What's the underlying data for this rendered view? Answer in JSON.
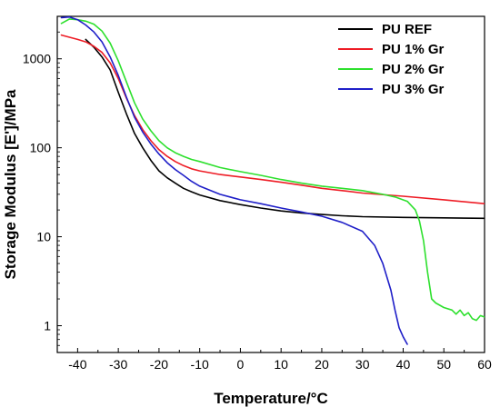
{
  "chart_data": {
    "type": "line",
    "xlabel": "Temperature/°C",
    "ylabel": "Storage Modulus [E']/MPa",
    "xlim": [
      -45,
      60
    ],
    "ylim": [
      0.5,
      3000
    ],
    "yscale": "log",
    "grid": false,
    "legend_position": "top-right",
    "x_ticks": [
      -40,
      -30,
      -20,
      -10,
      0,
      10,
      20,
      30,
      40,
      50,
      60
    ],
    "x_tick_labels": [
      "-40",
      "-30",
      "-20",
      "-10",
      "0",
      "10",
      "20",
      "30",
      "40",
      "50",
      "60"
    ],
    "y_ticks": [
      1,
      10,
      100,
      1000
    ],
    "y_tick_labels": [
      "1",
      "10",
      "100",
      "1000"
    ],
    "series": [
      {
        "name": "PU REF",
        "color": "#000000",
        "points": [
          [
            -38,
            1650
          ],
          [
            -36,
            1350
          ],
          [
            -34,
            1050
          ],
          [
            -32,
            750
          ],
          [
            -30,
            420
          ],
          [
            -28,
            240
          ],
          [
            -26,
            145
          ],
          [
            -24,
            100
          ],
          [
            -22,
            72
          ],
          [
            -20,
            55
          ],
          [
            -18,
            46
          ],
          [
            -16,
            40
          ],
          [
            -14,
            35
          ],
          [
            -12,
            32
          ],
          [
            -10,
            29.5
          ],
          [
            -5,
            25.5
          ],
          [
            0,
            23
          ],
          [
            5,
            21
          ],
          [
            10,
            19.5
          ],
          [
            15,
            18.5
          ],
          [
            20,
            17.8
          ],
          [
            25,
            17.2
          ],
          [
            30,
            16.8
          ],
          [
            40,
            16.5
          ],
          [
            50,
            16.3
          ],
          [
            60,
            16.1
          ]
        ]
      },
      {
        "name": "PU 1% Gr",
        "color": "#ee1c25",
        "points": [
          [
            -44,
            1850
          ],
          [
            -40,
            1650
          ],
          [
            -38,
            1550
          ],
          [
            -36,
            1380
          ],
          [
            -34,
            1180
          ],
          [
            -32,
            900
          ],
          [
            -30,
            600
          ],
          [
            -28,
            360
          ],
          [
            -26,
            230
          ],
          [
            -24,
            160
          ],
          [
            -22,
            120
          ],
          [
            -20,
            95
          ],
          [
            -18,
            80
          ],
          [
            -16,
            70
          ],
          [
            -14,
            63
          ],
          [
            -12,
            58
          ],
          [
            -10,
            55
          ],
          [
            -5,
            50
          ],
          [
            0,
            47
          ],
          [
            5,
            44
          ],
          [
            10,
            41
          ],
          [
            15,
            38
          ],
          [
            20,
            35
          ],
          [
            25,
            33
          ],
          [
            30,
            31
          ],
          [
            40,
            28.5
          ],
          [
            50,
            26
          ],
          [
            60,
            23.5
          ]
        ]
      },
      {
        "name": "PU 2% Gr",
        "color": "#2ee02e",
        "points": [
          [
            -44,
            2500
          ],
          [
            -42,
            2800
          ],
          [
            -40,
            2750
          ],
          [
            -38,
            2650
          ],
          [
            -36,
            2450
          ],
          [
            -34,
            2050
          ],
          [
            -32,
            1500
          ],
          [
            -30,
            950
          ],
          [
            -28,
            550
          ],
          [
            -26,
            320
          ],
          [
            -24,
            210
          ],
          [
            -22,
            155
          ],
          [
            -20,
            120
          ],
          [
            -18,
            100
          ],
          [
            -16,
            88
          ],
          [
            -14,
            80
          ],
          [
            -12,
            74
          ],
          [
            -10,
            70
          ],
          [
            -5,
            60
          ],
          [
            0,
            54
          ],
          [
            5,
            49
          ],
          [
            10,
            44
          ],
          [
            15,
            40
          ],
          [
            20,
            37
          ],
          [
            25,
            35
          ],
          [
            30,
            33
          ],
          [
            35,
            30
          ],
          [
            38,
            28
          ],
          [
            41,
            25
          ],
          [
            43,
            20
          ],
          [
            44,
            15
          ],
          [
            45,
            9
          ],
          [
            46,
            4
          ],
          [
            47,
            2
          ],
          [
            48,
            1.8
          ],
          [
            50,
            1.6
          ],
          [
            52,
            1.5
          ],
          [
            53,
            1.35
          ],
          [
            54,
            1.5
          ],
          [
            55,
            1.3
          ],
          [
            56,
            1.4
          ],
          [
            57,
            1.2
          ],
          [
            58,
            1.15
          ],
          [
            59,
            1.3
          ],
          [
            60,
            1.25
          ]
        ]
      },
      {
        "name": "PU 3% Gr",
        "color": "#1f1fc8",
        "points": [
          [
            -44,
            2900
          ],
          [
            -42,
            2950
          ],
          [
            -40,
            2750
          ],
          [
            -38,
            2400
          ],
          [
            -36,
            2000
          ],
          [
            -34,
            1550
          ],
          [
            -32,
            1050
          ],
          [
            -30,
            650
          ],
          [
            -28,
            370
          ],
          [
            -26,
            220
          ],
          [
            -24,
            150
          ],
          [
            -22,
            110
          ],
          [
            -20,
            85
          ],
          [
            -18,
            68
          ],
          [
            -16,
            57
          ],
          [
            -14,
            49
          ],
          [
            -12,
            42
          ],
          [
            -10,
            37
          ],
          [
            -5,
            30
          ],
          [
            0,
            26
          ],
          [
            5,
            23.5
          ],
          [
            10,
            21
          ],
          [
            15,
            19
          ],
          [
            20,
            17
          ],
          [
            25,
            14.5
          ],
          [
            30,
            11.5
          ],
          [
            33,
            8
          ],
          [
            35,
            5
          ],
          [
            37,
            2.5
          ],
          [
            38,
            1.5
          ],
          [
            39,
            0.95
          ],
          [
            40,
            0.75
          ],
          [
            41,
            0.62
          ]
        ]
      }
    ]
  }
}
